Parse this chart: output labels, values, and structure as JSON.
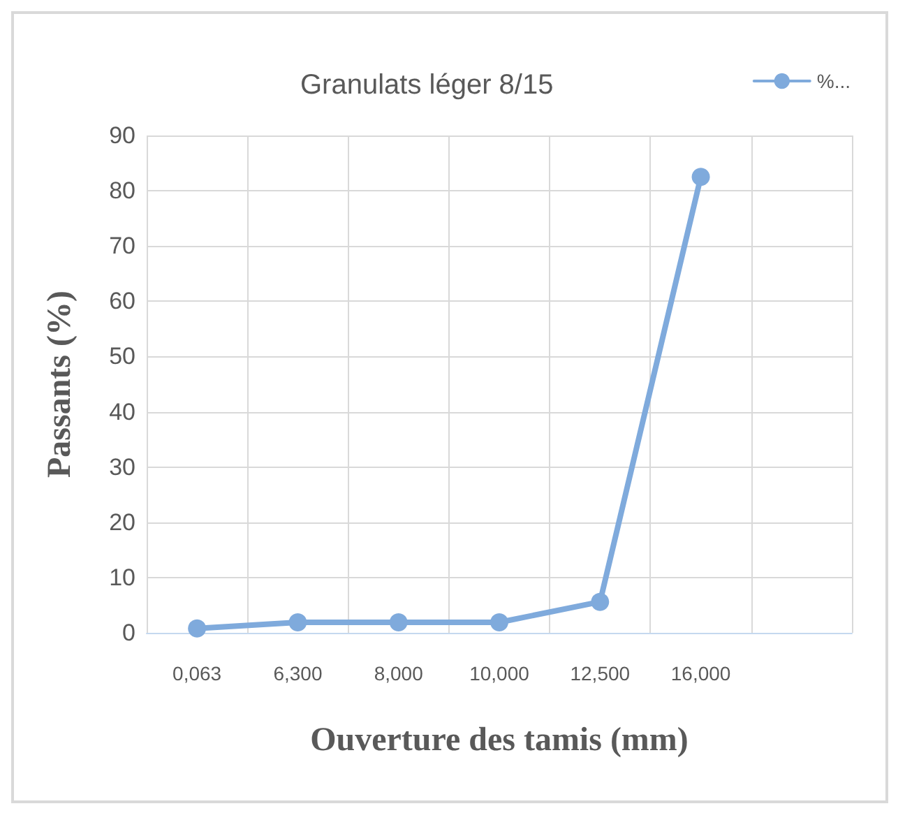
{
  "chart_data": {
    "type": "line",
    "title": "Granulats léger 8/15",
    "xlabel": "Ouverture des tamis (mm)",
    "ylabel": "Passants (%)",
    "categories": [
      "0,063",
      "6,300",
      "8,000",
      "10,000",
      "12,500",
      "16,000",
      null
    ],
    "series": [
      {
        "name": "%...",
        "color": "#7faadc",
        "values": [
          0.8,
          1.9,
          1.9,
          1.9,
          5.6,
          82.5,
          null
        ]
      }
    ],
    "ylim": [
      0,
      90
    ],
    "yticks": [
      0,
      10,
      20,
      30,
      40,
      50,
      60,
      70,
      80,
      90
    ],
    "grid": true,
    "legend": "top right",
    "marker": "circle",
    "line_style": "solid"
  }
}
